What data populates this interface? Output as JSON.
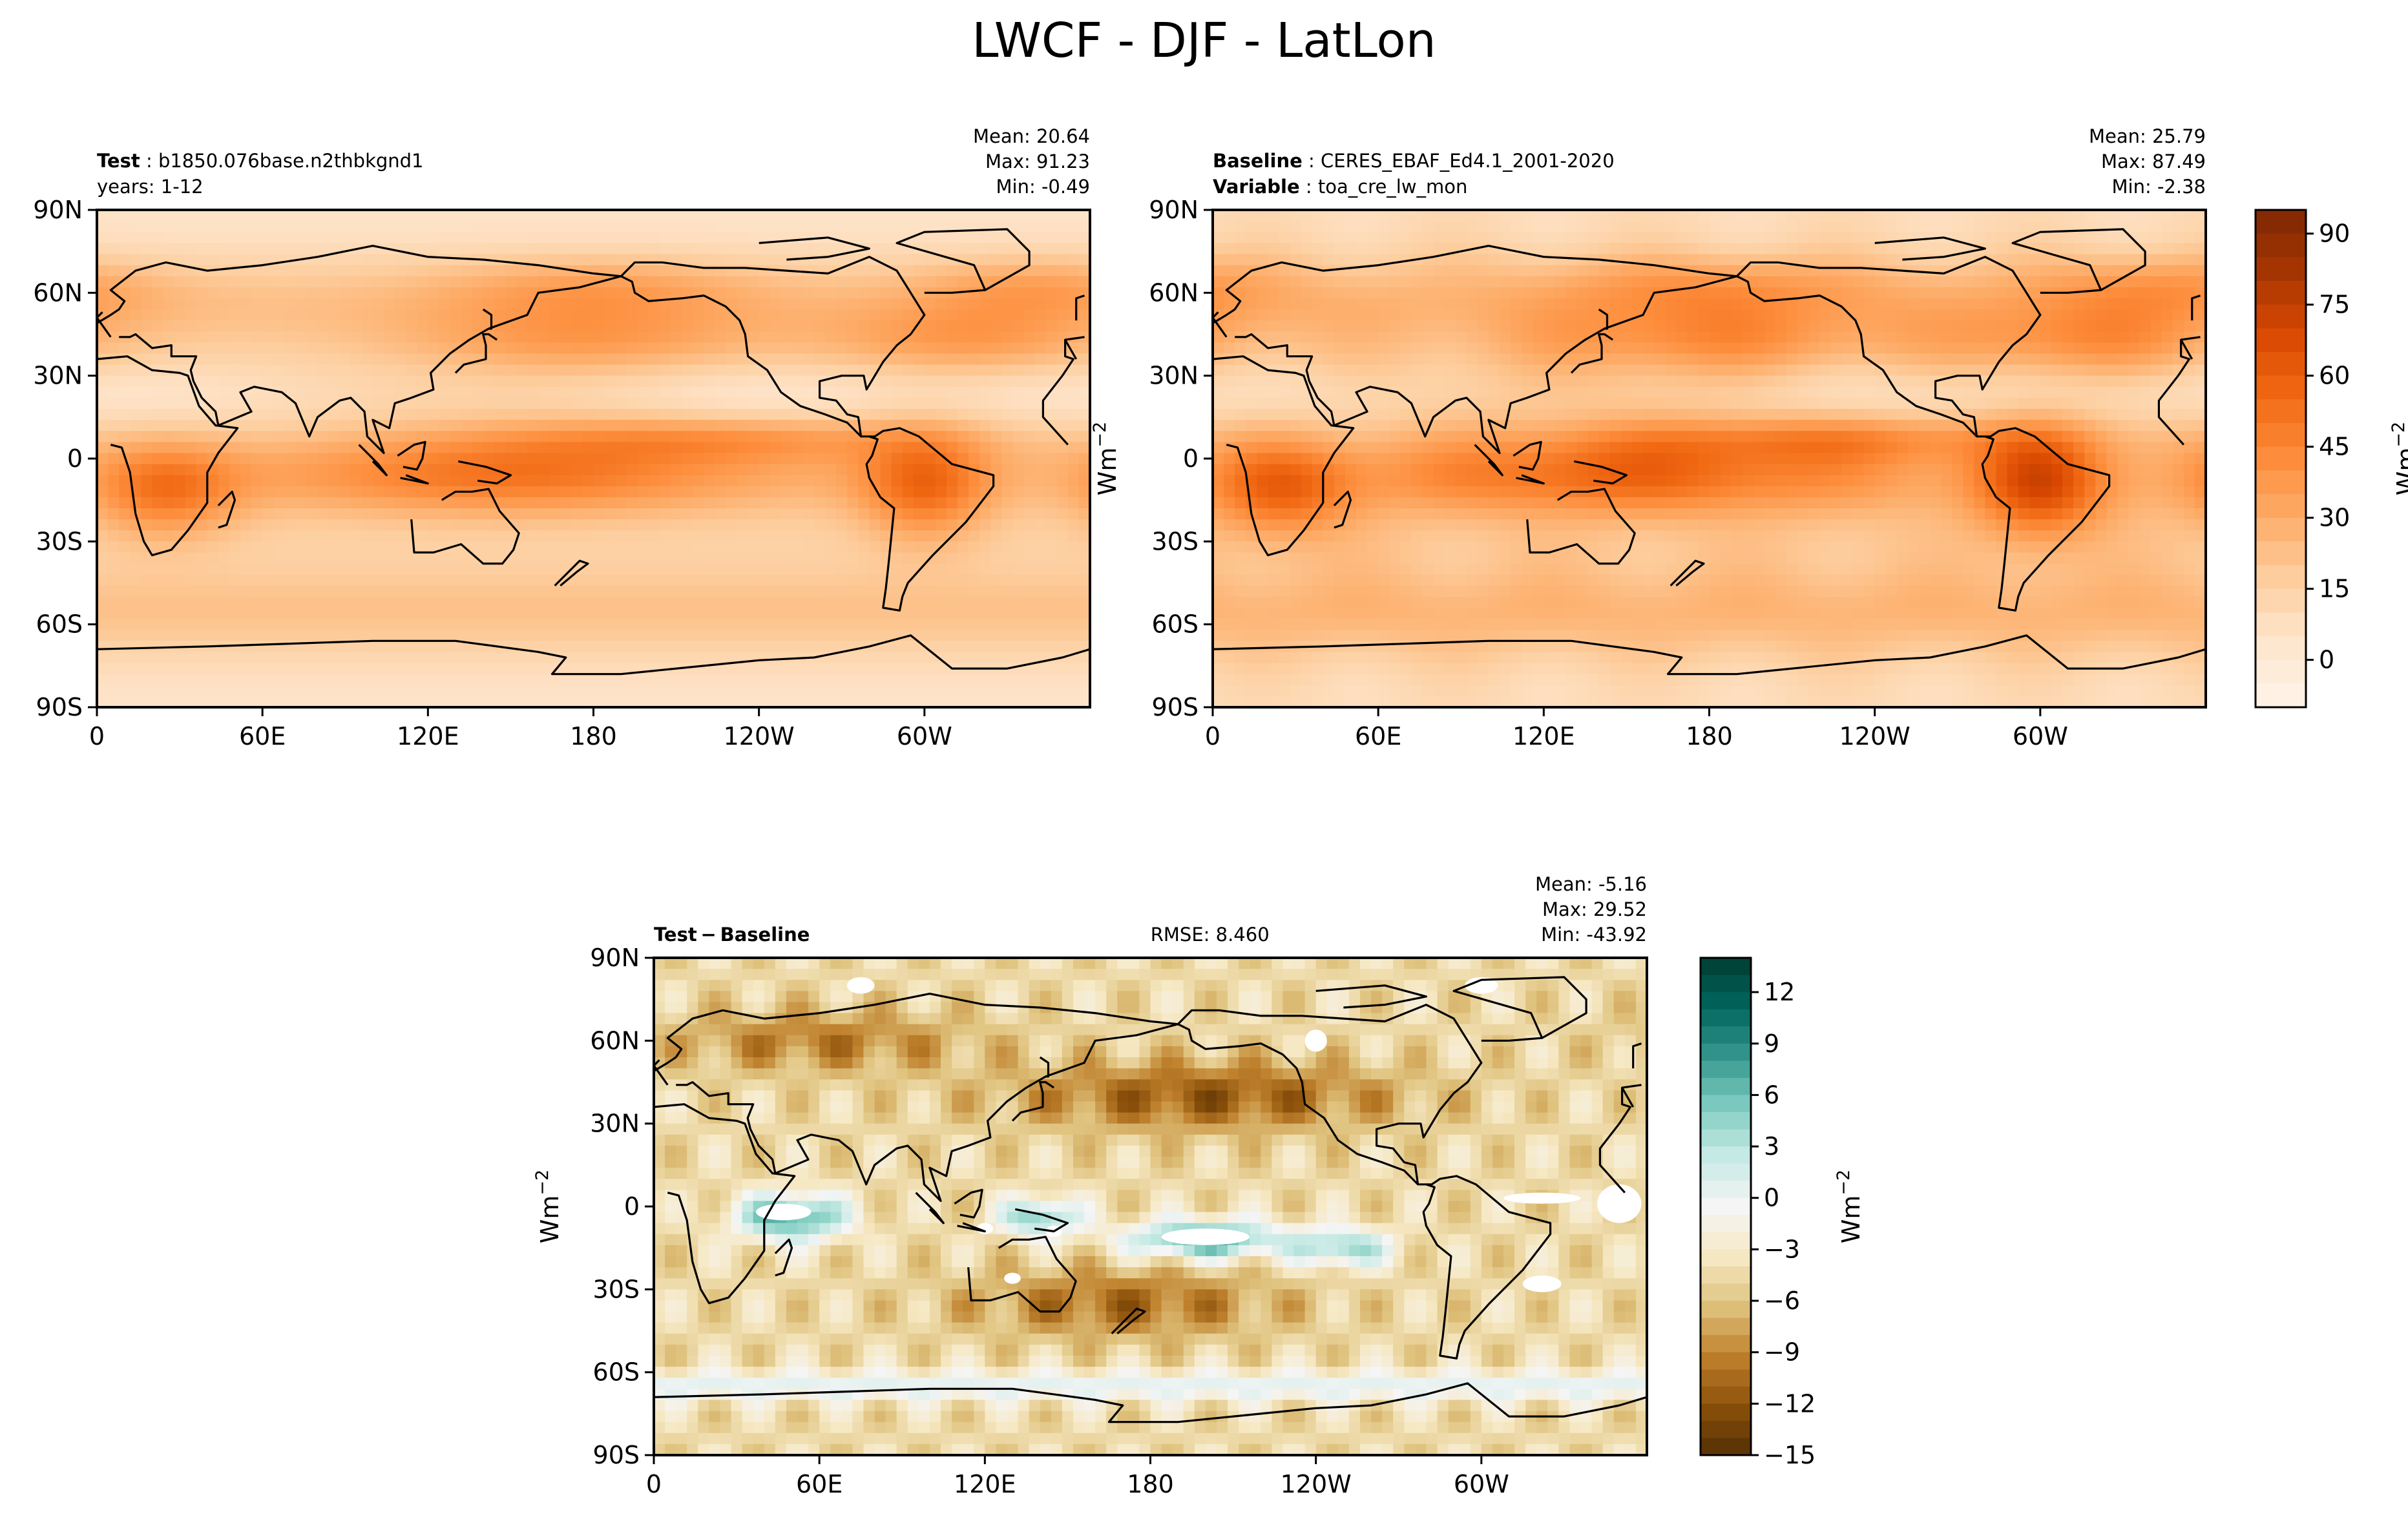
{
  "figure": {
    "title": "LWCF - DJF - LatLon"
  },
  "panels": [
    {
      "id": "test",
      "label_key": "Test",
      "label_value": "b1850.076base.n2thbkgnd1",
      "label2_key": "",
      "label2_value": "years: 1-12",
      "mean": "Mean: 20.64",
      "max": "Max: 91.23",
      "min": "Min: -0.49",
      "rmse": ""
    },
    {
      "id": "baseline",
      "label_key": "Baseline",
      "label_value": "CERES_EBAF_Ed4.1_2001-2020",
      "label2_key": "Variable",
      "label2_value": "toa_cre_lw_mon",
      "mean": "Mean: 25.79",
      "max": "Max: 87.49",
      "min": "Min: -2.38",
      "rmse": ""
    },
    {
      "id": "diff",
      "label_key": "Test − Baseline",
      "label_value": "",
      "label2_key": "",
      "label2_value": "",
      "mean": "Mean: -5.16",
      "max": "Max: 29.52",
      "min": "Min: -43.92",
      "rmse": "RMSE: 8.460"
    }
  ],
  "chart_data": [
    {
      "type": "heatmap",
      "name": "Test",
      "projection": "PlateCarree, central longitude 180",
      "xlim": [
        0,
        360
      ],
      "ylim": [
        -90,
        90
      ],
      "xticks": [
        "0",
        "60E",
        "120E",
        "180",
        "120W",
        "60W"
      ],
      "yticks": [
        "90N",
        "60N",
        "30N",
        "0",
        "30S",
        "60S",
        "90S"
      ],
      "stats": {
        "mean": 20.64,
        "max": 91.23,
        "min": -0.49
      },
      "colormap": "Oranges",
      "shared_colorbar": true
    },
    {
      "type": "heatmap",
      "name": "Baseline",
      "projection": "PlateCarree, central longitude 180",
      "xlim": [
        0,
        360
      ],
      "ylim": [
        -90,
        90
      ],
      "xticks": [
        "0",
        "60E",
        "120E",
        "180",
        "120W",
        "60W"
      ],
      "yticks": [
        "90N",
        "60N",
        "30N",
        "0",
        "30S",
        "60S",
        "90S"
      ],
      "stats": {
        "mean": 25.79,
        "max": 87.49,
        "min": -2.38
      },
      "colormap": "Oranges",
      "colorbar": {
        "label": "Wm$^{-2}$",
        "range": [
          -10,
          95
        ],
        "ticks": [
          "0",
          "15",
          "30",
          "45",
          "60",
          "75",
          "90"
        ],
        "tick_values": [
          0,
          15,
          30,
          45,
          60,
          75,
          90
        ],
        "colors": [
          "#fff5eb",
          "#fee6ce",
          "#fdd0a2",
          "#fdae6b",
          "#fd8d3c",
          "#f16913",
          "#d94801",
          "#a63603",
          "#7f2704"
        ]
      },
      "side_label": "Wm$^{-2}$"
    },
    {
      "type": "heatmap",
      "name": "Test − Baseline",
      "projection": "PlateCarree, central longitude 180",
      "xlim": [
        0,
        360
      ],
      "ylim": [
        -90,
        90
      ],
      "xticks": [
        "0",
        "60E",
        "120E",
        "180",
        "120W",
        "60W"
      ],
      "yticks": [
        "90N",
        "60N",
        "30N",
        "0",
        "30S",
        "60S",
        "90S"
      ],
      "stats": {
        "mean": -5.16,
        "max": 29.52,
        "min": -43.92,
        "rmse": 8.46
      },
      "colormap": "BrBG",
      "colorbar": {
        "label": "Wm$^{-2}$",
        "range": [
          -15,
          14
        ],
        "ticks": [
          "−15",
          "−12",
          "−9",
          "−6",
          "−3",
          "0",
          "3",
          "6",
          "9",
          "12"
        ],
        "tick_values": [
          -15,
          -12,
          -9,
          -6,
          -3,
          0,
          3,
          6,
          9,
          12
        ],
        "colors": [
          "#543005",
          "#8c510a",
          "#bf812d",
          "#dfc27d",
          "#f6e8c3",
          "#f5f5f5",
          "#c7eae5",
          "#80cdc1",
          "#35978f",
          "#01665e",
          "#003c30"
        ]
      },
      "side_label": "Wm$^{-2}$"
    }
  ]
}
